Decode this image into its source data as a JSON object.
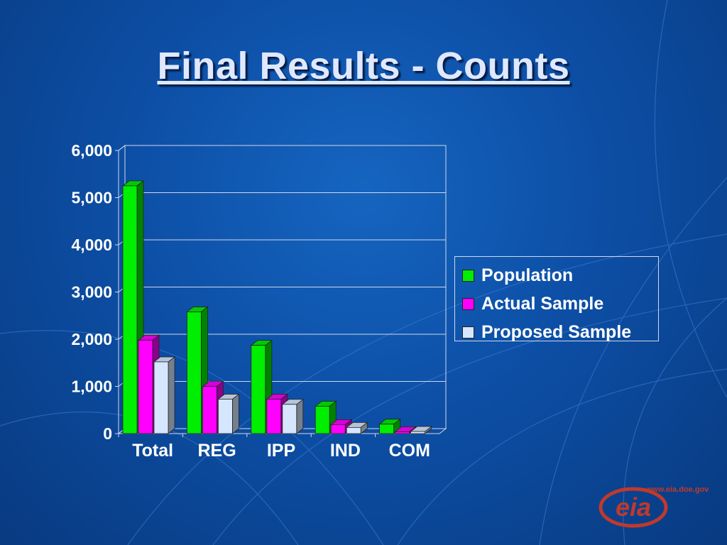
{
  "title": "Final Results - Counts",
  "chart_data": {
    "type": "bar",
    "categories": [
      "Total",
      "REG",
      "IPP",
      "IND",
      "COM"
    ],
    "series": [
      {
        "name": "Population",
        "color": "#00ee00",
        "values": [
          5250,
          2580,
          1870,
          580,
          200
        ]
      },
      {
        "name": "Actual Sample",
        "color": "#ff00ff",
        "values": [
          1980,
          1000,
          730,
          190,
          40
        ]
      },
      {
        "name": "Proposed Sample",
        "color": "#d6e6ff",
        "values": [
          1520,
          730,
          620,
          130,
          45
        ]
      }
    ],
    "y_ticks": [
      "0",
      "1,000",
      "2,000",
      "3,000",
      "4,000",
      "5,000",
      "6,000"
    ],
    "ylim": [
      0,
      6000
    ],
    "grid": true,
    "legend_position": "right"
  },
  "logo": {
    "text": "eia",
    "url_text": "www.eia.doe.gov"
  }
}
